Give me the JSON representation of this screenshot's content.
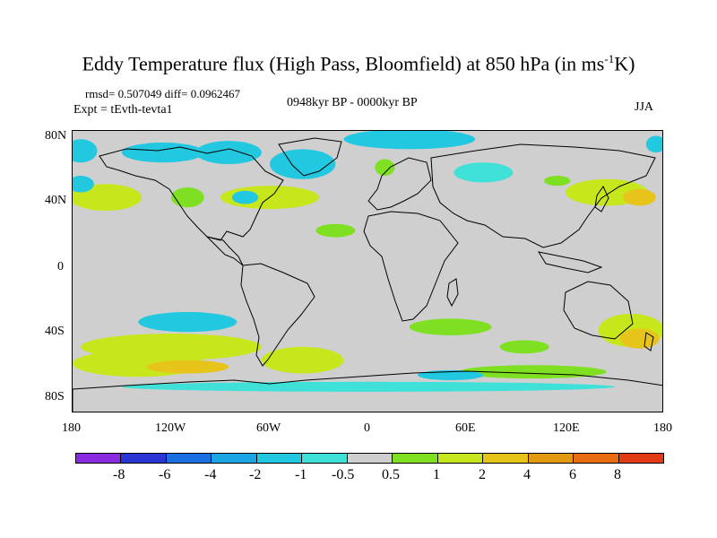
{
  "title": {
    "main": "Eddy Temperature flux (High Pass, Bloomfield) at 850 hPa (in ms",
    "sup": "-1",
    "tail": "K)"
  },
  "stats": {
    "rmsd_diff": "rmsd= 0.507049 diff= 0.0962467",
    "expt": "Expt = tEvth-tevta1",
    "period": "0948kyr BP - 0000kyr BP",
    "season": "JJA"
  },
  "axes": {
    "lat_labels": [
      "80N",
      "40N",
      "0",
      "40S",
      "80S"
    ],
    "lon_labels": [
      "180",
      "120W",
      "60W",
      "0",
      "60E",
      "120E",
      "180"
    ]
  },
  "colors": {
    "background": "#cfcfcf",
    "land_outline": "#000000"
  },
  "colorbar": {
    "colors": [
      "#8a2be2",
      "#2b35d4",
      "#1c6fe0",
      "#1ca4e4",
      "#22c8e0",
      "#3fe0d8",
      "#cfcfcf",
      "#7fe021",
      "#c8e61c",
      "#e6c41a",
      "#e49a10",
      "#e86c12",
      "#e23a12"
    ],
    "labels": [
      "-8",
      "-6",
      "-4",
      "-2",
      "-1",
      "-0.5",
      "0.5",
      "1",
      "2",
      "4",
      "6",
      "8"
    ]
  },
  "chart_data": {
    "type": "heatmap",
    "xlabel": "",
    "ylabel": "",
    "xlim": [
      -180,
      180
    ],
    "ylim": [
      -90,
      80
    ],
    "x_ticks": [
      -180,
      -120,
      -60,
      0,
      60,
      120,
      180
    ],
    "y_ticks": [
      80,
      40,
      0,
      -40,
      -80
    ],
    "levels": [
      -8,
      -6,
      -4,
      -2,
      -1,
      -0.5,
      0.5,
      1,
      2,
      4,
      6,
      8
    ],
    "regions": [
      {
        "lon": -175,
        "lat": 68,
        "rlon": 10,
        "rlat": 7,
        "value": -1.0
      },
      {
        "lon": -125,
        "lat": 67,
        "rlon": 25,
        "rlat": 6,
        "value": -1.0
      },
      {
        "lon": -85,
        "lat": 67,
        "rlon": 20,
        "rlat": 7,
        "value": -1.0
      },
      {
        "lon": -40,
        "lat": 60,
        "rlon": 20,
        "rlat": 9,
        "value": -1.5
      },
      {
        "lon": 10,
        "lat": 58,
        "rlon": 6,
        "rlat": 5,
        "value": 1.0
      },
      {
        "lon": 25,
        "lat": 75,
        "rlon": 40,
        "rlat": 6,
        "value": -1.0
      },
      {
        "lon": 70,
        "lat": 55,
        "rlon": 18,
        "rlat": 6,
        "value": -0.8
      },
      {
        "lon": 175,
        "lat": 72,
        "rlon": 6,
        "rlat": 5,
        "value": -1.0
      },
      {
        "lon": -160,
        "lat": 40,
        "rlon": 22,
        "rlat": 8,
        "value": 1.5
      },
      {
        "lon": -175,
        "lat": 48,
        "rlon": 8,
        "rlat": 5,
        "value": -1.0
      },
      {
        "lon": -110,
        "lat": 40,
        "rlon": 10,
        "rlat": 6,
        "value": 1.0
      },
      {
        "lon": -60,
        "lat": 40,
        "rlon": 30,
        "rlat": 7,
        "value": 1.2
      },
      {
        "lon": -75,
        "lat": 40,
        "rlon": 8,
        "rlat": 4,
        "value": -1.0
      },
      {
        "lon": -20,
        "lat": 20,
        "rlon": 12,
        "rlat": 4,
        "value": 1.0
      },
      {
        "lon": 145,
        "lat": 43,
        "rlon": 25,
        "rlat": 8,
        "value": 1.5
      },
      {
        "lon": 165,
        "lat": 40,
        "rlon": 10,
        "rlat": 5,
        "value": 2.2
      },
      {
        "lon": 115,
        "lat": 50,
        "rlon": 8,
        "rlat": 3,
        "value": 1.0
      },
      {
        "lon": -110,
        "lat": -35,
        "rlon": 30,
        "rlat": 6,
        "value": -1.0
      },
      {
        "lon": -120,
        "lat": -50,
        "rlon": 55,
        "rlat": 8,
        "value": 1.2
      },
      {
        "lon": -140,
        "lat": -60,
        "rlon": 40,
        "rlat": 8,
        "value": 2.0
      },
      {
        "lon": -110,
        "lat": -62,
        "rlon": 25,
        "rlat": 4,
        "value": 3.5
      },
      {
        "lon": -40,
        "lat": -58,
        "rlon": 25,
        "rlat": 8,
        "value": 1.5
      },
      {
        "lon": 50,
        "lat": -38,
        "rlon": 25,
        "rlat": 5,
        "value": 1.0
      },
      {
        "lon": 95,
        "lat": -50,
        "rlon": 15,
        "rlat": 4,
        "value": 1.0
      },
      {
        "lon": 100,
        "lat": -65,
        "rlon": 45,
        "rlat": 4,
        "value": 1.0
      },
      {
        "lon": 50,
        "lat": -67,
        "rlon": 20,
        "rlat": 3,
        "value": -1.2
      },
      {
        "lon": 160,
        "lat": -40,
        "rlon": 20,
        "rlat": 10,
        "value": 1.5
      },
      {
        "lon": 165,
        "lat": -45,
        "rlon": 12,
        "rlat": 6,
        "value": 2.5
      },
      {
        "lon": 0,
        "lat": -74,
        "rlon": 150,
        "rlat": 3,
        "value": -0.8
      }
    ]
  }
}
